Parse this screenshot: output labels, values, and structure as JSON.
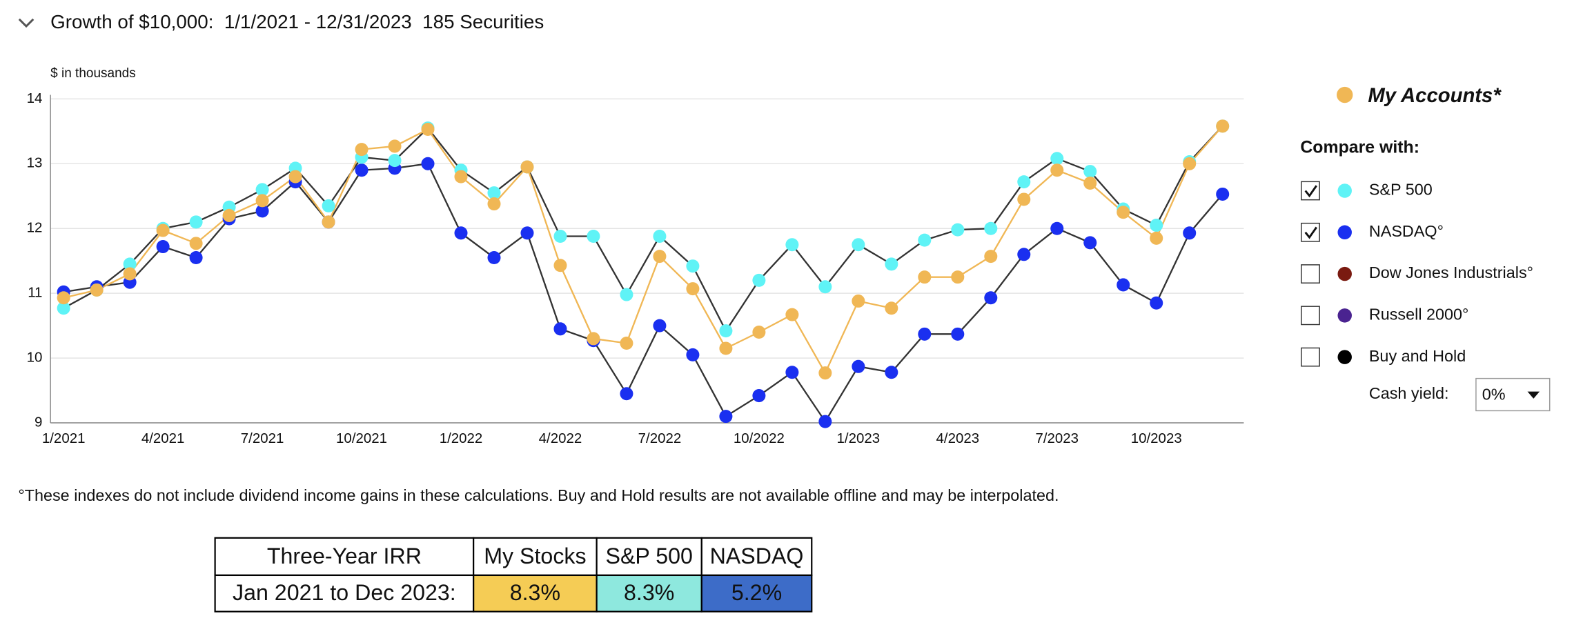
{
  "header": {
    "title": "Growth of $10,000:  1/1/2021 - 12/31/2023  185 Securities"
  },
  "chart_data": {
    "type": "line",
    "y_label": "$ in thousands",
    "categories": [
      "1/2021",
      null,
      null,
      "4/2021",
      null,
      null,
      "7/2021",
      null,
      null,
      "10/2021",
      null,
      null,
      "1/2022",
      null,
      null,
      "4/2022",
      null,
      null,
      "7/2022",
      null,
      null,
      "10/2022",
      null,
      null,
      "1/2023",
      null,
      null,
      "4/2023",
      null,
      null,
      "7/2023",
      null,
      null,
      "10/2023",
      null,
      null
    ],
    "ylim": [
      9,
      14
    ],
    "yticks": [
      9,
      10,
      11,
      12,
      13,
      14
    ],
    "grid": true,
    "series": [
      {
        "name": "My Accounts*",
        "color": "#f0b755",
        "line_color": "#f0b755",
        "values": [
          10.93,
          11.05,
          11.3,
          11.97,
          11.77,
          12.2,
          12.43,
          12.8,
          12.1,
          13.22,
          13.27,
          13.53,
          12.8,
          12.38,
          12.95,
          11.43,
          10.3,
          10.23,
          11.57,
          11.07,
          10.15,
          10.4,
          10.67,
          9.77,
          10.88,
          10.77,
          11.25,
          11.25,
          11.57,
          12.45,
          12.9,
          12.7,
          12.25,
          11.85,
          13.0,
          13.58
        ]
      },
      {
        "name": "S&P 500",
        "color": "#5ff3f6",
        "line_color": "#333333",
        "checked": true,
        "values": [
          10.77,
          11.05,
          11.45,
          12.0,
          12.1,
          12.33,
          12.6,
          12.93,
          12.35,
          13.1,
          13.05,
          13.55,
          12.9,
          12.55,
          12.95,
          11.88,
          11.88,
          10.98,
          11.88,
          11.42,
          10.42,
          11.2,
          11.75,
          11.1,
          11.75,
          11.45,
          11.82,
          11.98,
          12.0,
          12.72,
          13.08,
          12.88,
          12.3,
          12.05,
          13.03,
          13.58
        ]
      },
      {
        "name": "NASDAQ°",
        "color": "#1a2ff0",
        "line_color": "#333333",
        "checked": true,
        "values": [
          11.02,
          11.1,
          11.17,
          11.72,
          11.55,
          12.15,
          12.27,
          12.72,
          12.1,
          12.9,
          12.93,
          13.0,
          11.93,
          11.55,
          11.93,
          10.45,
          10.27,
          9.45,
          10.5,
          10.05,
          9.1,
          9.42,
          9.78,
          9.02,
          9.87,
          9.78,
          10.37,
          10.37,
          10.93,
          11.6,
          12.0,
          11.78,
          11.13,
          10.85,
          11.93,
          12.53
        ]
      }
    ]
  },
  "legend": {
    "compare_label": "Compare with:",
    "other_options": [
      {
        "name": "Dow Jones Industrials°",
        "color": "#7a1a10",
        "checked": false
      },
      {
        "name": "Russell 2000°",
        "color": "#4a2390",
        "checked": false
      },
      {
        "name": "Buy and Hold",
        "color": "#000000",
        "checked": false
      }
    ],
    "cash_yield_label": "Cash yield:",
    "cash_yield_value": "0%"
  },
  "footnote": "°These indexes do not include dividend income gains in these calculations. Buy and Hold results are not available offline and may be interpolated.",
  "table": {
    "header": [
      "Three-Year IRR",
      "My Stocks",
      "S&P 500",
      "NASDAQ"
    ],
    "rows": [
      [
        "Jan 2021 to Dec 2023:",
        "8.3%",
        "8.3%",
        "5.2%"
      ]
    ],
    "cell_colors": [
      [
        "#ffffff",
        "#f5cc55",
        "#8ee8de",
        "#3d6cc8"
      ]
    ]
  }
}
